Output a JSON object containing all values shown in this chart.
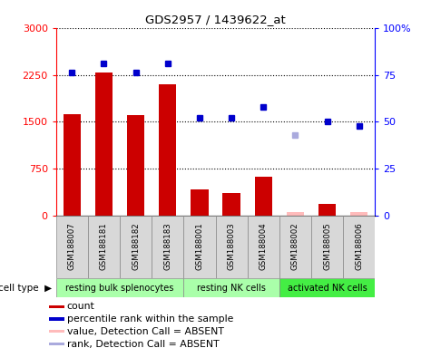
{
  "title": "GDS2957 / 1439622_at",
  "samples": [
    "GSM188007",
    "GSM188181",
    "GSM188182",
    "GSM188183",
    "GSM188001",
    "GSM188003",
    "GSM188004",
    "GSM188002",
    "GSM188005",
    "GSM188006"
  ],
  "cell_types": [
    {
      "label": "resting bulk splenocytes",
      "start": 0,
      "end": 4,
      "color": "#aaffaa"
    },
    {
      "label": "resting NK cells",
      "start": 4,
      "end": 7,
      "color": "#aaffaa"
    },
    {
      "label": "activated NK cells",
      "start": 7,
      "end": 10,
      "color": "#44ee44"
    }
  ],
  "bar_values": [
    1620,
    2280,
    1600,
    2100,
    420,
    370,
    620,
    55,
    195,
    55
  ],
  "bar_colors": [
    "#cc0000",
    "#cc0000",
    "#cc0000",
    "#cc0000",
    "#cc0000",
    "#cc0000",
    "#cc0000",
    "#ffbbbb",
    "#cc0000",
    "#ffbbbb"
  ],
  "dot_values": [
    76,
    81,
    76,
    81,
    52,
    52,
    58,
    43,
    50,
    48
  ],
  "dot_colors": [
    "#0000cc",
    "#0000cc",
    "#0000cc",
    "#0000cc",
    "#0000cc",
    "#0000cc",
    "#0000cc",
    "#aaaadd",
    "#0000cc",
    "#0000cc"
  ],
  "ylim_left": [
    0,
    3000
  ],
  "ylim_right": [
    0,
    100
  ],
  "yticks_left": [
    0,
    750,
    1500,
    2250,
    3000
  ],
  "yticks_right": [
    0,
    25,
    50,
    75,
    100
  ],
  "legend_colors": [
    "#cc0000",
    "#0000cc",
    "#ffbbbb",
    "#aaaadd"
  ],
  "legend_labels": [
    "count",
    "percentile rank within the sample",
    "value, Detection Call = ABSENT",
    "rank, Detection Call = ABSENT"
  ]
}
